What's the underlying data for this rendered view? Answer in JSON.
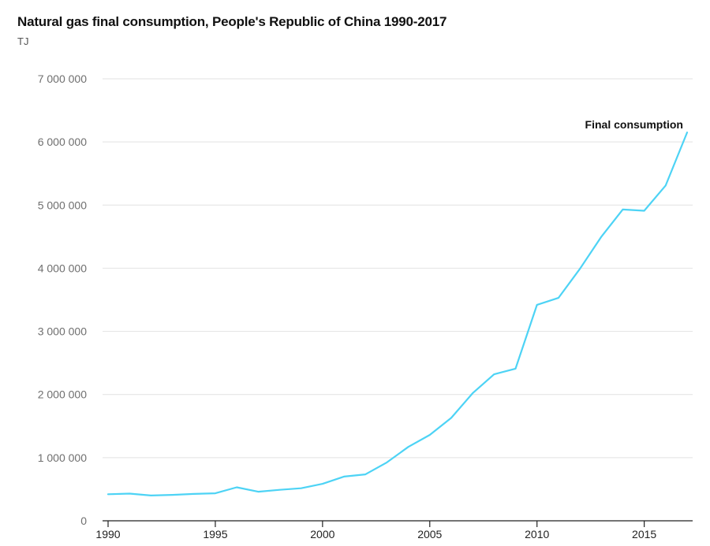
{
  "chart_data": {
    "type": "line",
    "title": "Natural gas final consumption, People's Republic of China 1990-2017",
    "unit": "TJ",
    "ylim": [
      0,
      7000000
    ],
    "yticks": [
      0,
      1000000,
      2000000,
      3000000,
      4000000,
      5000000,
      6000000,
      7000000
    ],
    "ytick_labels": [
      "0",
      "1 000 000",
      "2 000 000",
      "3 000 000",
      "4 000 000",
      "5 000 000",
      "6 000 000",
      "7 000 000"
    ],
    "xlim": [
      1990,
      2017
    ],
    "xticks": [
      1990,
      1995,
      2000,
      2005,
      2010,
      2015
    ],
    "xtick_labels": [
      "1990",
      "1995",
      "2000",
      "2005",
      "2010",
      "2015"
    ],
    "grid": true,
    "colors": {
      "line": "#4dd3f5",
      "grid": "#e2e2e2",
      "axis": "#222222"
    },
    "series": [
      {
        "name": "Final consumption",
        "x": [
          1990,
          1991,
          1992,
          1993,
          1994,
          1995,
          1996,
          1997,
          1998,
          1999,
          2000,
          2001,
          2002,
          2003,
          2004,
          2005,
          2006,
          2007,
          2008,
          2009,
          2010,
          2011,
          2012,
          2013,
          2014,
          2015,
          2016,
          2017
        ],
        "values": [
          420000,
          430000,
          400000,
          410000,
          425000,
          435000,
          530000,
          460000,
          490000,
          515000,
          585000,
          700000,
          735000,
          925000,
          1170000,
          1360000,
          1630000,
          2020000,
          2320000,
          2410000,
          3420000,
          3530000,
          3990000,
          4500000,
          4930000,
          4910000,
          5310000,
          6150000
        ]
      }
    ]
  }
}
